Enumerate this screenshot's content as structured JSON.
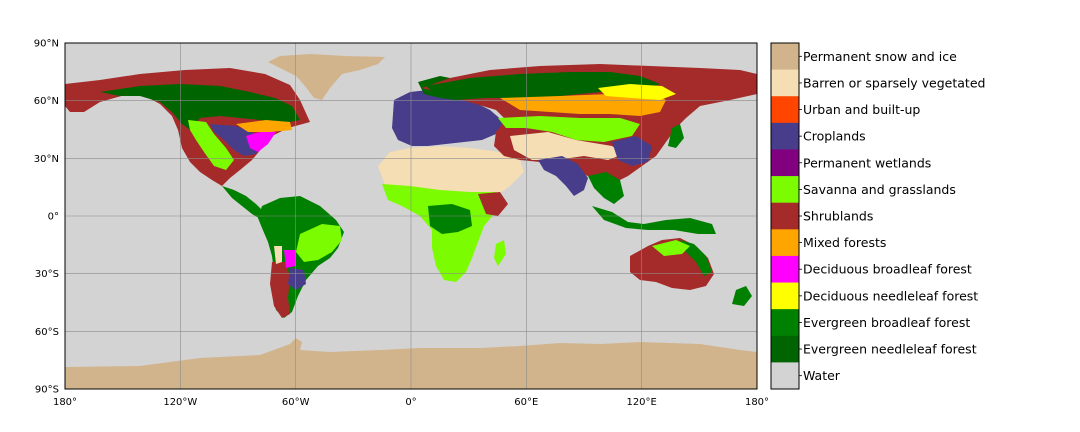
{
  "map": {
    "projection": "plate-carree",
    "extent": {
      "lon": [
        -180,
        180
      ],
      "lat": [
        -90,
        90
      ]
    },
    "ocean_color": "#d3d3d3",
    "grid": true,
    "grid_color": "#8c8c8c",
    "lat_ticks": [
      {
        "value": 90,
        "label": "90°N"
      },
      {
        "value": 60,
        "label": "60°N"
      },
      {
        "value": 30,
        "label": "30°N"
      },
      {
        "value": 0,
        "label": "0°"
      },
      {
        "value": -30,
        "label": "30°S"
      },
      {
        "value": -60,
        "label": "60°S"
      },
      {
        "value": -90,
        "label": "90°S"
      }
    ],
    "lon_ticks": [
      {
        "value": -180,
        "label": "180°"
      },
      {
        "value": -120,
        "label": "120°W"
      },
      {
        "value": -60,
        "label": "60°W"
      },
      {
        "value": 0,
        "label": "0°"
      },
      {
        "value": 60,
        "label": "60°E"
      },
      {
        "value": 120,
        "label": "120°E"
      },
      {
        "value": 180,
        "label": "180°"
      }
    ]
  },
  "legend": {
    "placement": "right",
    "classes": [
      {
        "label": "Permanent snow and ice",
        "color": "#d2b48c"
      },
      {
        "label": "Barren or sparsely vegetated",
        "color": "#f5deb3"
      },
      {
        "label": "Urban and built-up",
        "color": "#ff4500"
      },
      {
        "label": "Croplands",
        "color": "#483d8b"
      },
      {
        "label": "Permanent wetlands",
        "color": "#800080"
      },
      {
        "label": "Savanna and grasslands",
        "color": "#7cfc00"
      },
      {
        "label": "Shrublands",
        "color": "#a52a2a"
      },
      {
        "label": "Mixed forests",
        "color": "#ffa500"
      },
      {
        "label": "Deciduous broadleaf forest",
        "color": "#ff00ff"
      },
      {
        "label": "Deciduous needleleaf forest",
        "color": "#ffff00"
      },
      {
        "label": "Evergreen broadleaf forest",
        "color": "#008000"
      },
      {
        "label": "Evergreen needleleaf forest",
        "color": "#006400"
      },
      {
        "label": "Water",
        "color": "#d3d3d3"
      }
    ]
  }
}
